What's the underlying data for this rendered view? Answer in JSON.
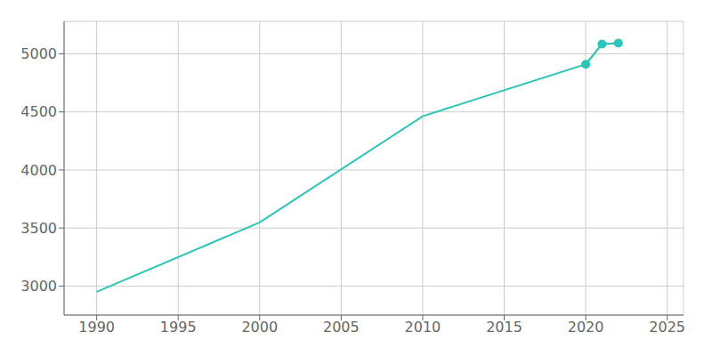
{
  "chart_data": {
    "type": "line",
    "x": [
      1990,
      2000,
      2010,
      2020,
      2021,
      2022
    ],
    "series": [
      {
        "color": "#2EC4B6",
        "marker": "none",
        "values": [
          2950,
          3548,
          4463,
          4910,
          5085,
          5093
        ]
      },
      {
        "color": "#2EC4B6",
        "marker": "circle",
        "values": [
          null,
          null,
          null,
          4910,
          5085,
          5093
        ]
      }
    ],
    "xlim": [
      1988,
      2026
    ],
    "ylim": [
      2750,
      5280
    ],
    "xticks": [
      1990,
      1995,
      2000,
      2005,
      2010,
      2015,
      2020,
      2025
    ],
    "yticks": [
      3000,
      3500,
      4000,
      4500,
      5000
    ],
    "grid": true
  }
}
